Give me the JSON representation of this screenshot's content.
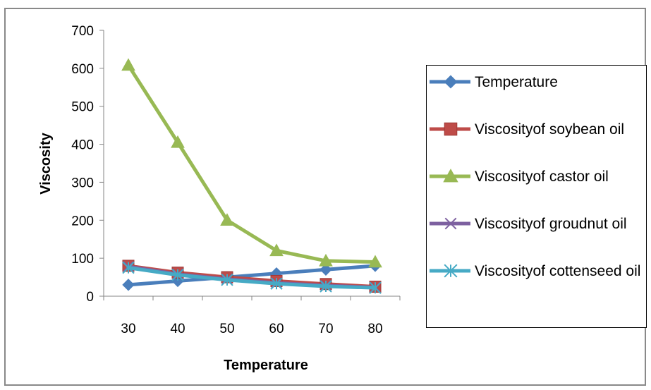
{
  "chart_data": {
    "type": "line",
    "xlabel": "Temperature",
    "ylabel": "Viscosity",
    "categories": [
      "30",
      "40",
      "50",
      "60",
      "70",
      "80"
    ],
    "ylim": [
      0,
      700
    ],
    "yticks": [
      "0",
      "100",
      "200",
      "300",
      "400",
      "500",
      "600",
      "700"
    ],
    "grid": false,
    "legend_position": "right",
    "series": [
      {
        "name": "Temperature",
        "values": [
          30,
          40,
          50,
          60,
          70,
          80
        ],
        "color": "#4a7ebb",
        "marker": "diamond"
      },
      {
        "name": "Viscosityof soybean oil",
        "values": [
          80,
          62,
          50,
          40,
          32,
          25
        ],
        "color": "#be4b48",
        "marker": "square"
      },
      {
        "name": "Viscosityof castor oil",
        "values": [
          608,
          405,
          200,
          120,
          93,
          90
        ],
        "color": "#98b954",
        "marker": "triangle"
      },
      {
        "name": "Viscosityof groudnut oil",
        "values": [
          78,
          58,
          45,
          35,
          28,
          23
        ],
        "color": "#7d60a0",
        "marker": "x"
      },
      {
        "name": "Viscosityof cottenseed oil",
        "values": [
          75,
          56,
          43,
          33,
          26,
          22
        ],
        "color": "#46aac5",
        "marker": "star"
      }
    ]
  }
}
